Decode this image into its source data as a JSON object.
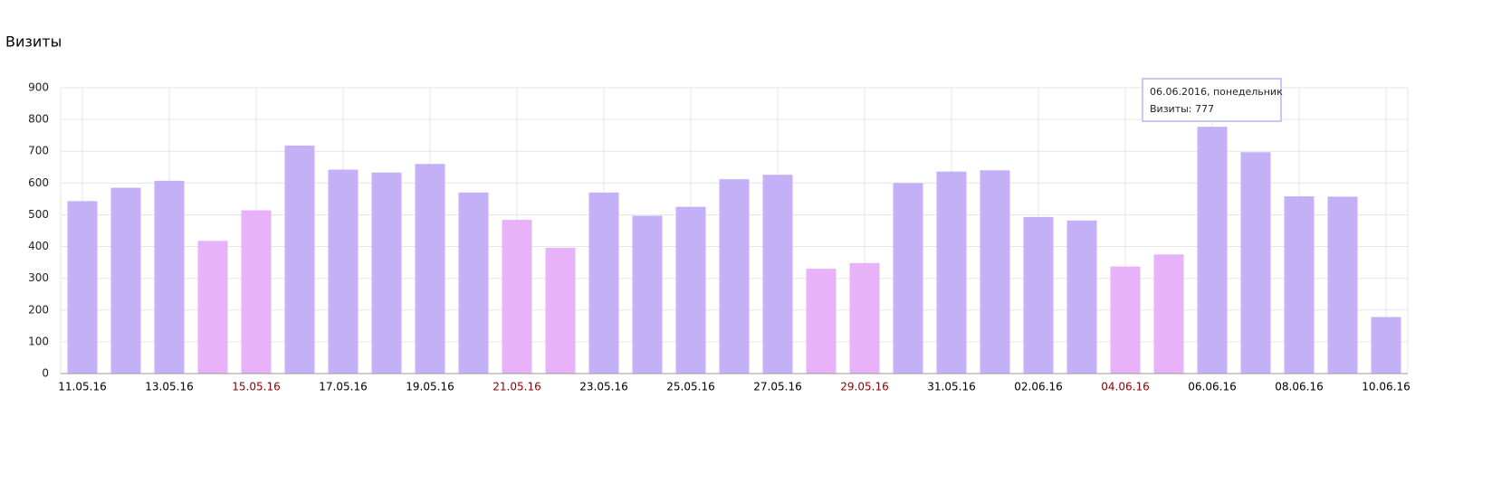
{
  "chart_data": {
    "type": "bar",
    "title": "Визиты",
    "categories": [
      "11.05.16",
      null,
      "13.05.16",
      null,
      "15.05.16",
      null,
      "17.05.16",
      null,
      "19.05.16",
      null,
      "21.05.16",
      null,
      "23.05.16",
      null,
      "25.05.16",
      null,
      "27.05.16",
      null,
      "29.05.16",
      null,
      "31.05.16",
      null,
      "02.06.16",
      null,
      "04.06.16",
      null,
      "06.06.16",
      null,
      "08.06.16",
      null,
      "10.06.16"
    ],
    "values": [
      543,
      585,
      607,
      418,
      514,
      718,
      642,
      633,
      660,
      570,
      484,
      396,
      570,
      497,
      525,
      612,
      626,
      330,
      348,
      600,
      636,
      640,
      493,
      482,
      337,
      375,
      777,
      697,
      558,
      557,
      178
    ],
    "colors": [
      "#c3b0f7",
      "#c3b0f7",
      "#c3b0f7",
      "#e8b2f8",
      "#e8b2f8",
      "#c3b0f7",
      "#c3b0f7",
      "#c3b0f7",
      "#c3b0f7",
      "#c3b0f7",
      "#e8b2f8",
      "#e8b2f8",
      "#c3b0f7",
      "#c3b0f7",
      "#c3b0f7",
      "#c3b0f7",
      "#c3b0f7",
      "#e8b2f8",
      "#e8b2f8",
      "#c3b0f7",
      "#c3b0f7",
      "#c3b0f7",
      "#c3b0f7",
      "#c3b0f7",
      "#e8b2f8",
      "#e8b2f8",
      "#c3b0f7",
      "#c3b0f7",
      "#c3b0f7",
      "#c3b0f7",
      "#c3b0f7"
    ],
    "label_colors": [
      "#000000",
      null,
      "#000000",
      null,
      "#8b0000",
      null,
      "#000000",
      null,
      "#000000",
      null,
      "#8b0000",
      null,
      "#000000",
      null,
      "#000000",
      null,
      "#000000",
      null,
      "#8b0000",
      null,
      "#000000",
      null,
      "#000000",
      null,
      "#8b0000",
      null,
      "#000000",
      null,
      "#000000",
      null,
      "#000000"
    ],
    "ylim": [
      0,
      900
    ],
    "yticks": [
      0,
      100,
      200,
      300,
      400,
      500,
      600,
      700,
      800,
      900
    ],
    "grid": true,
    "tooltip": {
      "title": "06.06.2016, понедельник",
      "text": "Визиты: 777"
    }
  }
}
